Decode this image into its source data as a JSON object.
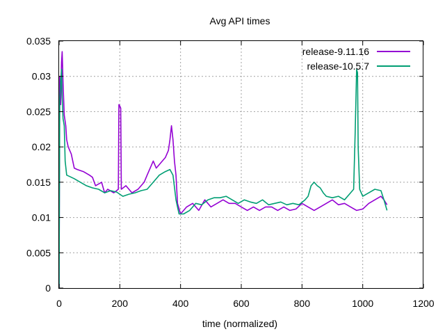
{
  "chart_data": {
    "type": "line",
    "title": "Avg API times",
    "xlabel": "time (normalized)",
    "ylabel": "",
    "xlim": [
      0,
      1200
    ],
    "ylim": [
      0,
      0.035
    ],
    "xticks": [
      0,
      200,
      400,
      600,
      800,
      1000,
      1200
    ],
    "yticks": [
      0,
      0.005,
      0.01,
      0.015,
      0.02,
      0.025,
      0.03,
      0.035
    ],
    "xtick_labels": [
      "0",
      "200",
      "400",
      "600",
      "800",
      "1000",
      "1200"
    ],
    "ytick_labels": [
      "0",
      "0.005",
      "0.01",
      "0.015",
      "0.02",
      "0.025",
      "0.03",
      "0.035"
    ],
    "grid": true,
    "legend_position": "top-right",
    "series": [
      {
        "name": "release-9.11.16",
        "color": "#9400d3",
        "points": [
          [
            0,
            0.0
          ],
          [
            2,
            0.03
          ],
          [
            5,
            0.026
          ],
          [
            8,
            0.032
          ],
          [
            10,
            0.0335
          ],
          [
            13,
            0.029
          ],
          [
            17,
            0.0245
          ],
          [
            22,
            0.023
          ],
          [
            25,
            0.021
          ],
          [
            30,
            0.02
          ],
          [
            40,
            0.019
          ],
          [
            50,
            0.017
          ],
          [
            60,
            0.0168
          ],
          [
            80,
            0.0165
          ],
          [
            100,
            0.016
          ],
          [
            110,
            0.0157
          ],
          [
            120,
            0.0145
          ],
          [
            140,
            0.015
          ],
          [
            150,
            0.0135
          ],
          [
            160,
            0.014
          ],
          [
            180,
            0.0135
          ],
          [
            195,
            0.014
          ],
          [
            197,
            0.026
          ],
          [
            200,
            0.0258
          ],
          [
            203,
            0.0255
          ],
          [
            205,
            0.014
          ],
          [
            220,
            0.0145
          ],
          [
            240,
            0.0135
          ],
          [
            260,
            0.014
          ],
          [
            280,
            0.015
          ],
          [
            290,
            0.016
          ],
          [
            300,
            0.017
          ],
          [
            310,
            0.018
          ],
          [
            320,
            0.017
          ],
          [
            330,
            0.0175
          ],
          [
            340,
            0.018
          ],
          [
            350,
            0.0185
          ],
          [
            360,
            0.0195
          ],
          [
            365,
            0.021
          ],
          [
            370,
            0.023
          ],
          [
            375,
            0.021
          ],
          [
            380,
            0.018
          ],
          [
            385,
            0.016
          ],
          [
            390,
            0.012
          ],
          [
            400,
            0.0105
          ],
          [
            420,
            0.0115
          ],
          [
            440,
            0.012
          ],
          [
            460,
            0.011
          ],
          [
            480,
            0.0125
          ],
          [
            500,
            0.0115
          ],
          [
            520,
            0.012
          ],
          [
            540,
            0.0125
          ],
          [
            560,
            0.012
          ],
          [
            580,
            0.012
          ],
          [
            600,
            0.0115
          ],
          [
            620,
            0.011
          ],
          [
            640,
            0.0115
          ],
          [
            660,
            0.011
          ],
          [
            680,
            0.0115
          ],
          [
            700,
            0.0115
          ],
          [
            720,
            0.011
          ],
          [
            740,
            0.0115
          ],
          [
            760,
            0.011
          ],
          [
            780,
            0.0112
          ],
          [
            800,
            0.012
          ],
          [
            820,
            0.0115
          ],
          [
            840,
            0.011
          ],
          [
            860,
            0.0115
          ],
          [
            880,
            0.012
          ],
          [
            900,
            0.0125
          ],
          [
            920,
            0.0118
          ],
          [
            940,
            0.012
          ],
          [
            960,
            0.0115
          ],
          [
            980,
            0.011
          ],
          [
            1000,
            0.0112
          ],
          [
            1020,
            0.012
          ],
          [
            1040,
            0.0125
          ],
          [
            1060,
            0.013
          ],
          [
            1070,
            0.0125
          ],
          [
            1080,
            0.0118
          ]
        ]
      },
      {
        "name": "release-10.5.7",
        "color": "#009e73",
        "points": [
          [
            0,
            0.0
          ],
          [
            2,
            0.0265
          ],
          [
            5,
            0.029
          ],
          [
            8,
            0.031
          ],
          [
            10,
            0.027
          ],
          [
            13,
            0.024
          ],
          [
            17,
            0.023
          ],
          [
            20,
            0.018
          ],
          [
            25,
            0.016
          ],
          [
            35,
            0.0158
          ],
          [
            50,
            0.0155
          ],
          [
            70,
            0.015
          ],
          [
            90,
            0.0145
          ],
          [
            110,
            0.0142
          ],
          [
            130,
            0.014
          ],
          [
            150,
            0.0135
          ],
          [
            170,
            0.0138
          ],
          [
            190,
            0.0136
          ],
          [
            210,
            0.013
          ],
          [
            230,
            0.0133
          ],
          [
            250,
            0.0135
          ],
          [
            270,
            0.0138
          ],
          [
            290,
            0.014
          ],
          [
            310,
            0.015
          ],
          [
            330,
            0.016
          ],
          [
            350,
            0.0165
          ],
          [
            365,
            0.0168
          ],
          [
            375,
            0.016
          ],
          [
            385,
            0.0125
          ],
          [
            395,
            0.0105
          ],
          [
            410,
            0.0105
          ],
          [
            430,
            0.011
          ],
          [
            450,
            0.012
          ],
          [
            470,
            0.0118
          ],
          [
            490,
            0.0125
          ],
          [
            510,
            0.0128
          ],
          [
            530,
            0.0128
          ],
          [
            550,
            0.013
          ],
          [
            570,
            0.0125
          ],
          [
            590,
            0.012
          ],
          [
            610,
            0.0125
          ],
          [
            630,
            0.0122
          ],
          [
            650,
            0.012
          ],
          [
            670,
            0.0125
          ],
          [
            690,
            0.0118
          ],
          [
            710,
            0.012
          ],
          [
            730,
            0.0122
          ],
          [
            750,
            0.0118
          ],
          [
            770,
            0.012
          ],
          [
            790,
            0.0118
          ],
          [
            810,
            0.0125
          ],
          [
            820,
            0.013
          ],
          [
            830,
            0.0145
          ],
          [
            840,
            0.015
          ],
          [
            850,
            0.0145
          ],
          [
            860,
            0.0142
          ],
          [
            870,
            0.0135
          ],
          [
            880,
            0.013
          ],
          [
            900,
            0.0128
          ],
          [
            920,
            0.013
          ],
          [
            940,
            0.0125
          ],
          [
            960,
            0.0135
          ],
          [
            970,
            0.014
          ],
          [
            975,
            0.022
          ],
          [
            980,
            0.031
          ],
          [
            983,
            0.0305
          ],
          [
            985,
            0.02
          ],
          [
            990,
            0.014
          ],
          [
            1000,
            0.013
          ],
          [
            1020,
            0.0135
          ],
          [
            1040,
            0.014
          ],
          [
            1060,
            0.0138
          ],
          [
            1070,
            0.0125
          ],
          [
            1080,
            0.011
          ]
        ]
      }
    ]
  }
}
